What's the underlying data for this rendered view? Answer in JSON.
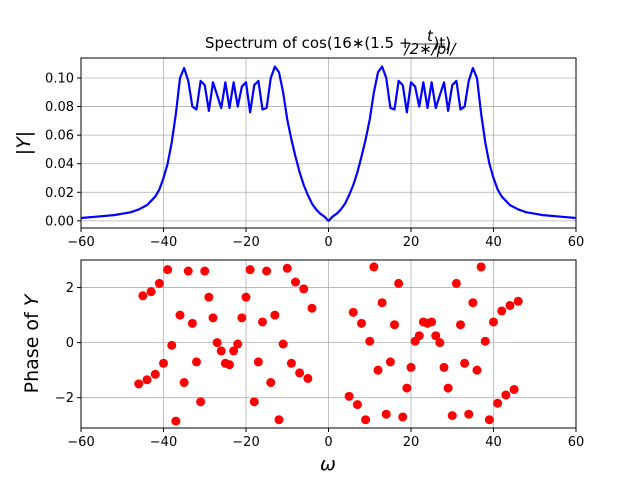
{
  "chart_data": [
    {
      "type": "line",
      "title": "Spectrum of cos(16*(1.5+t/(2*pi))t)",
      "title_parts": {
        "lead": "Spectrum of cos(16",
        "mult1": "∗",
        "mid": "(1.5 +",
        "frac_num": "t",
        "frac_den": "/2∗/pi/",
        "tail": ")t)"
      },
      "xlabel": "",
      "ylabel": "|Y|",
      "xlim": [
        -60,
        60
      ],
      "ylim": [
        -0.005,
        0.114
      ],
      "xticks": [
        -60,
        -40,
        -20,
        0,
        20,
        40,
        60
      ],
      "yticks": [
        0.0,
        0.02,
        0.04,
        0.06,
        0.08,
        0.1
      ],
      "ytick_labels": [
        "0.00",
        "0.02",
        "0.04",
        "0.06",
        "0.08",
        "0.10"
      ],
      "grid": true,
      "series": [
        {
          "color": "#0000ff",
          "x": [
            -60,
            -56,
            -52,
            -50,
            -48,
            -46,
            -44,
            -42,
            -41,
            -40,
            -39,
            -38,
            -37,
            -36,
            -35,
            -34,
            -33,
            -32,
            -31,
            -30,
            -29,
            -28,
            -27,
            -26,
            -25,
            -24,
            -23,
            -22,
            -21,
            -20,
            -19,
            -18,
            -17,
            -16,
            -15,
            -14,
            -13,
            -12,
            -11,
            -10,
            -9,
            -8,
            -7,
            -6,
            -5,
            -4,
            -3,
            -2,
            -1,
            0,
            1,
            2,
            3,
            4,
            5,
            6,
            7,
            8,
            9,
            10,
            11,
            12,
            13,
            14,
            15,
            16,
            17,
            18,
            19,
            20,
            21,
            22,
            23,
            24,
            25,
            26,
            27,
            28,
            29,
            30,
            31,
            32,
            33,
            34,
            35,
            36,
            37,
            38,
            39,
            40,
            41,
            42,
            44,
            46,
            48,
            50,
            52,
            56,
            60
          ],
          "y": [
            0.002,
            0.003,
            0.004,
            0.005,
            0.006,
            0.008,
            0.011,
            0.017,
            0.022,
            0.03,
            0.04,
            0.055,
            0.075,
            0.1,
            0.107,
            0.098,
            0.08,
            0.078,
            0.098,
            0.095,
            0.077,
            0.097,
            0.088,
            0.079,
            0.097,
            0.079,
            0.097,
            0.08,
            0.094,
            0.097,
            0.076,
            0.095,
            0.098,
            0.078,
            0.079,
            0.1,
            0.108,
            0.104,
            0.09,
            0.071,
            0.057,
            0.045,
            0.034,
            0.025,
            0.018,
            0.012,
            0.008,
            0.005,
            0.003,
            0.0,
            0.003,
            0.005,
            0.008,
            0.012,
            0.018,
            0.025,
            0.034,
            0.045,
            0.057,
            0.071,
            0.09,
            0.104,
            0.108,
            0.1,
            0.079,
            0.078,
            0.098,
            0.095,
            0.076,
            0.097,
            0.094,
            0.08,
            0.097,
            0.079,
            0.097,
            0.079,
            0.088,
            0.097,
            0.077,
            0.095,
            0.098,
            0.078,
            0.08,
            0.098,
            0.107,
            0.1,
            0.075,
            0.055,
            0.04,
            0.03,
            0.022,
            0.017,
            0.011,
            0.008,
            0.006,
            0.005,
            0.004,
            0.003,
            0.002
          ]
        }
      ]
    },
    {
      "type": "scatter",
      "xlabel": "ω",
      "ylabel": "Phase of Y",
      "ylabel_parts": {
        "text": "Phase of",
        "symbol": "Y"
      },
      "xlim": [
        -60,
        60
      ],
      "ylim": [
        -3.1,
        3.0
      ],
      "xticks": [
        -60,
        -40,
        -20,
        0,
        20,
        40,
        60
      ],
      "yticks": [
        -2,
        0,
        2
      ],
      "ytick_labels": [
        "−2",
        "0",
        "2"
      ],
      "grid": true,
      "series": [
        {
          "color": "#ff0000",
          "x": [
            -46,
            -45,
            -44,
            -43,
            -42,
            -41,
            -40,
            -39,
            -38,
            -37,
            -36,
            -35,
            -34,
            -33,
            -32,
            -31,
            -30,
            -29,
            -28,
            -27,
            -26,
            -25,
            -24,
            -23,
            -22,
            -21,
            -20,
            -19,
            -18,
            -17,
            -16,
            -15,
            -14,
            -13,
            -12,
            -11,
            -10,
            -9,
            -8,
            -7,
            -6,
            -5,
            -4,
            5,
            6,
            7,
            8,
            9,
            10,
            11,
            12,
            13,
            14,
            15,
            16,
            17,
            18,
            19,
            20,
            21,
            22,
            23,
            24,
            25,
            26,
            27,
            28,
            29,
            30,
            31,
            32,
            33,
            34,
            35,
            36,
            37,
            38,
            39,
            40,
            41,
            42,
            43,
            44,
            45,
            46
          ],
          "y": [
            -1.5,
            1.7,
            -1.35,
            1.85,
            -1.15,
            2.15,
            -0.75,
            2.65,
            -0.1,
            -2.85,
            1.0,
            -1.45,
            2.6,
            0.7,
            -0.7,
            -2.15,
            2.6,
            1.65,
            0.9,
            0.0,
            -0.3,
            -0.75,
            -0.8,
            -0.3,
            -0.05,
            0.9,
            1.65,
            2.65,
            -2.15,
            -0.7,
            0.75,
            2.6,
            -1.45,
            1.0,
            -2.8,
            -0.05,
            2.7,
            -0.75,
            2.2,
            -1.1,
            1.95,
            -1.3,
            1.25,
            -1.95,
            1.1,
            -2.25,
            0.7,
            -2.8,
            0.05,
            2.75,
            -1.0,
            1.45,
            -2.6,
            -0.7,
            0.65,
            2.15,
            -2.7,
            -1.65,
            -0.9,
            0.05,
            0.25,
            0.75,
            0.7,
            0.75,
            0.25,
            0.0,
            -0.9,
            -1.65,
            -2.65,
            2.15,
            0.65,
            -0.75,
            -2.6,
            1.45,
            -1.0,
            2.75,
            0.05,
            -2.8,
            0.75,
            -2.2,
            1.15,
            -1.9,
            1.35,
            -1.7,
            1.5
          ]
        }
      ]
    }
  ]
}
